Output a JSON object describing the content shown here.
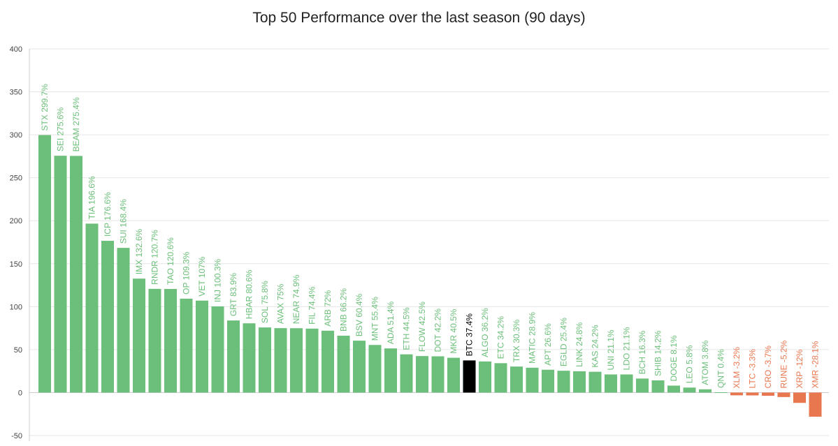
{
  "chart_data": {
    "type": "bar",
    "title": "Top 50 Performance over the last season (90 days)",
    "xlabel": "",
    "ylabel": "",
    "ylim": [
      -50,
      400
    ],
    "yticks": [
      400,
      350,
      300,
      250,
      200,
      150,
      100,
      50,
      0,
      -50
    ],
    "grid": true,
    "legend": "none",
    "colors": {
      "positive": "#6cbf7a",
      "negative": "#e8774f",
      "highlight": "#000000",
      "grid": "#e6e6e6",
      "axis": "#cccccc"
    },
    "highlight": "BTC",
    "bars": [
      {
        "name": "STX",
        "value": 299.7,
        "label": "STX 299.7%"
      },
      {
        "name": "SEI",
        "value": 275.6,
        "label": "SEI 275.6%"
      },
      {
        "name": "BEAM",
        "value": 275.4,
        "label": "BEAM 275.4%"
      },
      {
        "name": "TIA",
        "value": 196.6,
        "label": "TIA 196.6%"
      },
      {
        "name": "ICP",
        "value": 176.6,
        "label": "ICP 176.6%"
      },
      {
        "name": "SUI",
        "value": 168.4,
        "label": "SUI 168.4%"
      },
      {
        "name": "IMX",
        "value": 132.6,
        "label": "IMX 132.6%"
      },
      {
        "name": "RNDR",
        "value": 120.7,
        "label": "RNDR 120.7%"
      },
      {
        "name": "TAO",
        "value": 120.6,
        "label": "TAO 120.6%"
      },
      {
        "name": "OP",
        "value": 109.3,
        "label": "OP 109.3%"
      },
      {
        "name": "VET",
        "value": 107,
        "label": "VET 107%"
      },
      {
        "name": "INJ",
        "value": 100.3,
        "label": "INJ 100.3%"
      },
      {
        "name": "GRT",
        "value": 83.9,
        "label": "GRT 83.9%"
      },
      {
        "name": "HBAR",
        "value": 80.6,
        "label": "HBAR 80.6%"
      },
      {
        "name": "SOL",
        "value": 75.8,
        "label": "SOL 75.8%"
      },
      {
        "name": "AVAX",
        "value": 75,
        "label": "AVAX 75%"
      },
      {
        "name": "NEAR",
        "value": 74.9,
        "label": "NEAR 74.9%"
      },
      {
        "name": "FIL",
        "value": 74.4,
        "label": "FIL 74.4%"
      },
      {
        "name": "ARB",
        "value": 72,
        "label": "ARB 72%"
      },
      {
        "name": "BNB",
        "value": 66.2,
        "label": "BNB 66.2%"
      },
      {
        "name": "BSV",
        "value": 60.4,
        "label": "BSV 60.4%"
      },
      {
        "name": "MNT",
        "value": 55.4,
        "label": "MNT 55.4%"
      },
      {
        "name": "ADA",
        "value": 51.4,
        "label": "ADA 51.4%"
      },
      {
        "name": "ETH",
        "value": 44.5,
        "label": "ETH 44.5%"
      },
      {
        "name": "FLOW",
        "value": 42.5,
        "label": "FLOW 42.5%"
      },
      {
        "name": "DOT",
        "value": 42.2,
        "label": "DOT 42.2%"
      },
      {
        "name": "MKR",
        "value": 40.5,
        "label": "MKR 40.5%"
      },
      {
        "name": "BTC",
        "value": 37.4,
        "label": "BTC 37.4%"
      },
      {
        "name": "ALGO",
        "value": 36.2,
        "label": "ALGO 36.2%"
      },
      {
        "name": "ETC",
        "value": 34.2,
        "label": "ETC 34.2%"
      },
      {
        "name": "TRX",
        "value": 30.3,
        "label": "TRX 30.3%"
      },
      {
        "name": "MATIC",
        "value": 28.9,
        "label": "MATIC 28.9%"
      },
      {
        "name": "APT",
        "value": 26.6,
        "label": "APT 26.6%"
      },
      {
        "name": "EGLD",
        "value": 25.4,
        "label": "EGLD 25.4%"
      },
      {
        "name": "LINK",
        "value": 24.8,
        "label": "LINK 24.8%"
      },
      {
        "name": "KAS",
        "value": 24.2,
        "label": "KAS 24.2%"
      },
      {
        "name": "UNI",
        "value": 21.1,
        "label": "UNI 21.1%"
      },
      {
        "name": "LDO",
        "value": 21.1,
        "label": "LDO 21.1%"
      },
      {
        "name": "BCH",
        "value": 16.3,
        "label": "BCH 16.3%"
      },
      {
        "name": "SHIB",
        "value": 14.2,
        "label": "SHIB 14.2%"
      },
      {
        "name": "DOGE",
        "value": 8.1,
        "label": "DOGE 8.1%"
      },
      {
        "name": "LEO",
        "value": 5.8,
        "label": "LEO 5.8%"
      },
      {
        "name": "ATOM",
        "value": 3.8,
        "label": "ATOM 3.8%"
      },
      {
        "name": "QNT",
        "value": 0.4,
        "label": "QNT 0.4%"
      },
      {
        "name": "XLM",
        "value": -3.2,
        "label": "XLM -3.2%"
      },
      {
        "name": "LTC",
        "value": -3.3,
        "label": "LTC -3.3%"
      },
      {
        "name": "CRO",
        "value": -3.7,
        "label": "CRO -3.7%"
      },
      {
        "name": "RUNE",
        "value": -5.2,
        "label": "RUNE -5.2%"
      },
      {
        "name": "XRP",
        "value": -12,
        "label": "XRP -12%"
      },
      {
        "name": "XMR",
        "value": -28.1,
        "label": "XMR -28.1%"
      }
    ]
  }
}
